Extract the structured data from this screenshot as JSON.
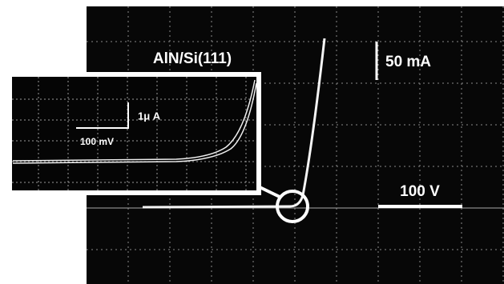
{
  "figure": {
    "title": "AlN/Si(111)",
    "main_scale": {
      "current": "50 mA",
      "voltage": "100 V"
    },
    "inset_scale": {
      "current": "1μ A",
      "voltage": "100 mV"
    }
  }
}
